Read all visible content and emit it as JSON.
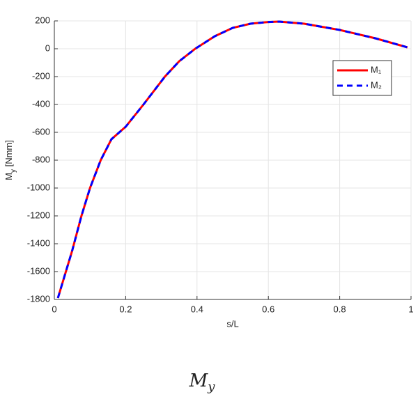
{
  "chart_data": {
    "type": "line",
    "xlabel": "s/L",
    "ylabel": [
      "M",
      "y",
      " [Nmm]"
    ],
    "caption": [
      "M",
      "y"
    ],
    "x": [
      0.01,
      0.05,
      0.076,
      0.1,
      0.13,
      0.16,
      0.2,
      0.25,
      0.31,
      0.35,
      0.395,
      0.45,
      0.5,
      0.55,
      0.6,
      0.63,
      0.7,
      0.8,
      0.9,
      0.99
    ],
    "series": [
      {
        "name": "M₁",
        "color": "#ff0000",
        "dash": false,
        "values": [
          -1790,
          -1450,
          -1200,
          -1000,
          -800,
          -650,
          -560,
          -400,
          -200,
          -90,
          0,
          90,
          150,
          180,
          192,
          195,
          180,
          135,
          75,
          10
        ]
      },
      {
        "name": "M₂",
        "color": "#0000ff",
        "dash": true,
        "values": [
          -1790,
          -1450,
          -1200,
          -1000,
          -800,
          -650,
          -560,
          -400,
          -200,
          -90,
          0,
          90,
          150,
          180,
          192,
          195,
          180,
          135,
          75,
          10
        ]
      }
    ],
    "xlim": [
      0,
      1
    ],
    "xticks": [
      0,
      0.2,
      0.4,
      0.6,
      0.8,
      1
    ],
    "ylim": [
      -1800,
      200
    ],
    "yticks": [
      -1800,
      -1600,
      -1400,
      -1200,
      -1000,
      -800,
      -600,
      -400,
      -200,
      0,
      200
    ],
    "grid": true,
    "legend": "upper right"
  }
}
